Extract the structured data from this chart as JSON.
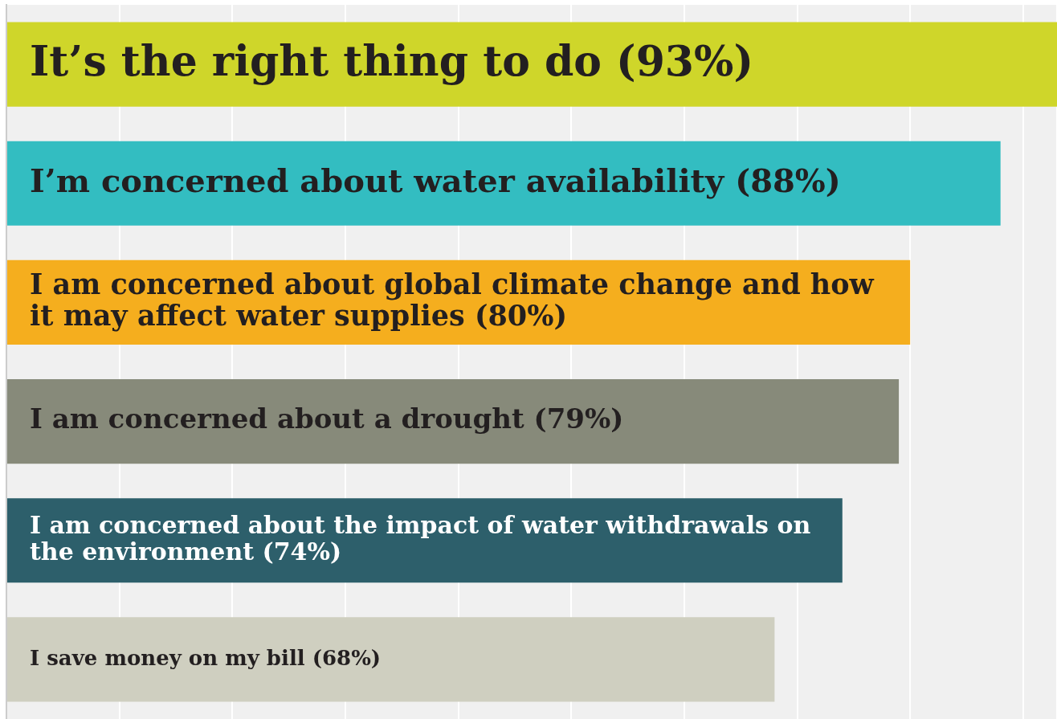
{
  "chart_data": {
    "type": "bar",
    "orientation": "horizontal",
    "categories": [
      "It’s the right thing to do",
      "I’m concerned about water availability",
      "I am concerned about global climate change and how it may affect water supplies",
      "I am concerned about a drought",
      "I am concerned about the impact of water withdrawals on the environment",
      "I save money on my bill"
    ],
    "values": [
      93,
      88,
      80,
      79,
      74,
      68
    ],
    "value_labels": [
      "(93%)",
      "(88%)",
      "(80%)",
      "(79%)",
      "(74%)",
      "(68%)"
    ],
    "colors": [
      "#cfd62a",
      "#33bdc1",
      "#f5ae1e",
      "#878a7a",
      "#2d5f6b",
      "#cfcfc0"
    ],
    "tick_labels": false,
    "grid": "x",
    "legend": false
  }
}
